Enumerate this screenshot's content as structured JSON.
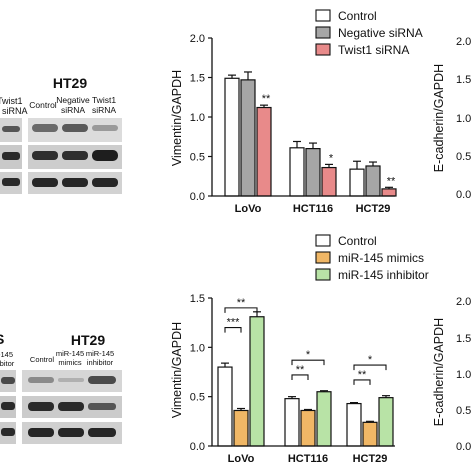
{
  "blots_top": {
    "cell_title": "HT29",
    "lanes": [
      "Control",
      "Negative siRNA",
      "Twist1 siRNA"
    ],
    "left_cut_lanes": [
      "Twist1",
      "siRNA"
    ]
  },
  "blots_bottom": {
    "cell_title": "HT29",
    "left_cut_title": "S",
    "lanes": [
      "Control",
      "miR-145 mimics",
      "miR-145 inhibitor"
    ],
    "left_cut_lanes": [
      "-145",
      "ibitor"
    ]
  },
  "right_cut": {
    "top_ylabel": "E-cadherin/GAPDH",
    "bottom_ylabel": "E-cadherin/GAPDH",
    "top_ticks": [
      "2.0",
      "1.5",
      "1.0",
      "0.5",
      "0.0"
    ],
    "bottom_ticks": [
      "2.0",
      "1.5",
      "1.0",
      "0.5",
      "0.0"
    ]
  },
  "chart_data": [
    {
      "type": "bar",
      "ylabel": "Vimentin/GAPDH",
      "categories": [
        "LoVo",
        "HCT116",
        "HCT29"
      ],
      "ylim": [
        0,
        2.0
      ],
      "yticks": [
        "0.0",
        "0.5",
        "1.0",
        "1.5",
        "2.0"
      ],
      "legend_position": "top-right",
      "series": [
        {
          "name": "Control",
          "color": "#ffffff",
          "values": [
            1.49,
            0.61,
            0.34
          ],
          "errors": [
            0.04,
            0.08,
            0.1
          ]
        },
        {
          "name": "Negative siRNA",
          "color": "#a6a6a6",
          "values": [
            1.47,
            0.6,
            0.38
          ],
          "errors": [
            0.1,
            0.07,
            0.05
          ]
        },
        {
          "name": "Twist1 siRNA",
          "color": "#e88a8a",
          "values": [
            1.12,
            0.36,
            0.09
          ],
          "errors": [
            0.03,
            0.04,
            0.02
          ]
        }
      ],
      "annotations": [
        {
          "category": "LoVo",
          "series": "Twist1 siRNA",
          "text": "**"
        },
        {
          "category": "HCT116",
          "series": "Twist1 siRNA",
          "text": "*"
        },
        {
          "category": "HCT29",
          "series": "Twist1 siRNA",
          "text": "**"
        }
      ]
    },
    {
      "type": "bar",
      "ylabel": "Vimentin/GAPDH",
      "categories": [
        "LoVo",
        "HCT116",
        "HCT29"
      ],
      "ylim": [
        0,
        1.5
      ],
      "yticks": [
        "0.0",
        "0.5",
        "1.0",
        "1.5"
      ],
      "legend_position": "top-right",
      "series": [
        {
          "name": "Control",
          "color": "#ffffff",
          "values": [
            0.8,
            0.48,
            0.43
          ],
          "errors": [
            0.04,
            0.02,
            0.01
          ]
        },
        {
          "name": "miR-145 mimics",
          "color": "#f0b766",
          "values": [
            0.36,
            0.36,
            0.24
          ],
          "errors": [
            0.02,
            0.01,
            0.01
          ]
        },
        {
          "name": "miR-145 inhibitor",
          "color": "#b8e3a6",
          "values": [
            1.31,
            0.55,
            0.49
          ],
          "errors": [
            0.05,
            0.01,
            0.02
          ]
        }
      ],
      "brackets": [
        {
          "category": "LoVo",
          "from": "Control",
          "to": "miR-145 mimics",
          "text": "***",
          "y": 1.2
        },
        {
          "category": "LoVo",
          "from": "Control",
          "to": "miR-145 inhibitor",
          "text": "**",
          "y": 1.4
        },
        {
          "category": "HCT116",
          "from": "Control",
          "to": "miR-145 mimics",
          "text": "**",
          "y": 0.72
        },
        {
          "category": "HCT116",
          "from": "Control",
          "to": "miR-145 inhibitor",
          "text": "*",
          "y": 0.87
        },
        {
          "category": "HCT29",
          "from": "Control",
          "to": "miR-145 mimics",
          "text": "**",
          "y": 0.67
        },
        {
          "category": "HCT29",
          "from": "Control",
          "to": "miR-145 inhibitor",
          "text": "*",
          "y": 0.82
        }
      ]
    }
  ]
}
